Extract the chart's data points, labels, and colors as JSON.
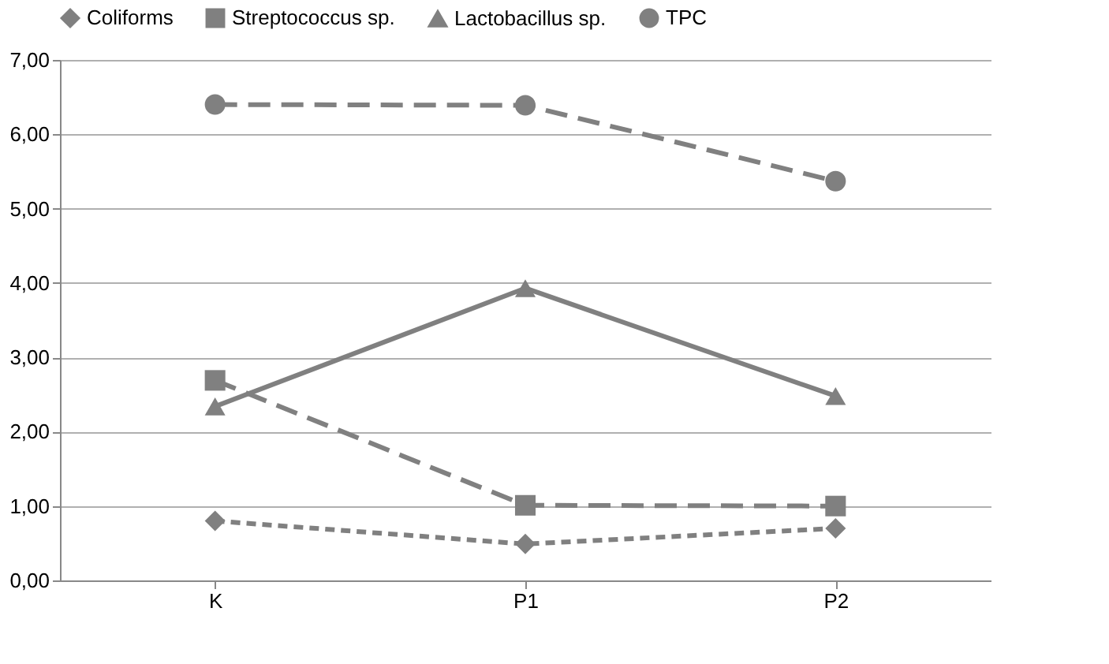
{
  "chart_data": {
    "type": "line",
    "categories": [
      "K",
      "P1",
      "P2"
    ],
    "series": [
      {
        "name": "Coliforms",
        "color": "#808080",
        "marker": "diamond",
        "line_style": "dotted",
        "values": [
          0.8,
          0.49,
          0.7
        ]
      },
      {
        "name": "Streptococcus sp.",
        "color": "#808080",
        "marker": "square",
        "line_style": "dashed",
        "values": [
          2.69,
          1.01,
          1.0
        ]
      },
      {
        "name": "Lactobacillus sp.",
        "color": "#808080",
        "marker": "triangle",
        "line_style": "solid",
        "values": [
          2.34,
          3.93,
          2.48
        ]
      },
      {
        "name": "TPC",
        "color": "#808080",
        "marker": "circle",
        "line_style": "dashed",
        "values": [
          6.4,
          6.39,
          5.37
        ]
      }
    ],
    "ylim": [
      0,
      7
    ],
    "yticks": [
      {
        "value": 0,
        "label": "0,00"
      },
      {
        "value": 1,
        "label": "1,00"
      },
      {
        "value": 2,
        "label": "2,00"
      },
      {
        "value": 3,
        "label": "3,00"
      },
      {
        "value": 4,
        "label": "4,00"
      },
      {
        "value": 5,
        "label": "5,00"
      },
      {
        "value": 6,
        "label": "6,00"
      },
      {
        "value": 7,
        "label": "7,00"
      }
    ],
    "grid": "y",
    "legend": "top"
  }
}
